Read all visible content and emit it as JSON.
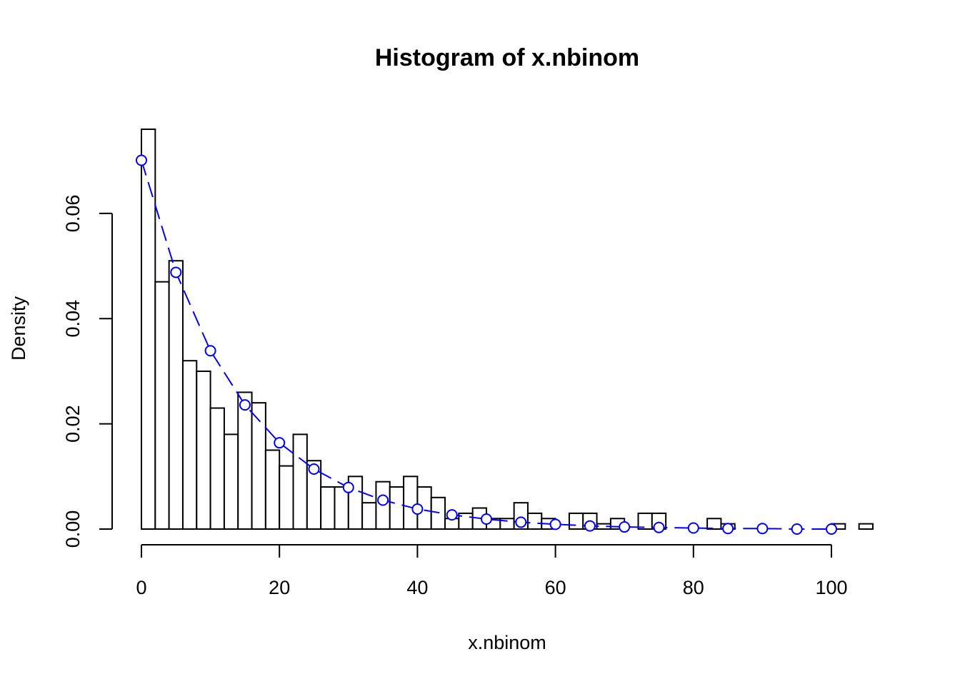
{
  "chart_data": {
    "type": "histogram",
    "title": "Histogram of x.nbinom",
    "x_label": "x.nbinom",
    "y_label": "Density",
    "bins": [
      0,
      2,
      4,
      6,
      8,
      10,
      12,
      14,
      16,
      18,
      20,
      22,
      24,
      26,
      28,
      30,
      32,
      34,
      36,
      38,
      40,
      42,
      44,
      46,
      48,
      50,
      52,
      54,
      56,
      58,
      60,
      62,
      64,
      66,
      68,
      70,
      72,
      74,
      76,
      78,
      80,
      82,
      84,
      86,
      88,
      90,
      92,
      94,
      96,
      98,
      100,
      102,
      104,
      106
    ],
    "values": [
      0.076,
      0.047,
      0.051,
      0.032,
      0.03,
      0.023,
      0.018,
      0.026,
      0.024,
      0.015,
      0.012,
      0.018,
      0.013,
      0.008,
      0.008,
      0.01,
      0.005,
      0.009,
      0.008,
      0.01,
      0.008,
      0.006,
      0.002,
      0.003,
      0.004,
      0.002,
      0.002,
      0.005,
      0.003,
      0.002,
      0,
      0.003,
      0.003,
      0.001,
      0.002,
      0,
      0.003,
      0.003,
      0,
      0,
      0,
      0.002,
      0.001,
      0,
      0,
      0,
      0,
      0,
      0,
      0,
      0.001,
      0,
      0.001
    ],
    "color": "#ffffff",
    "line": {
      "color": "#0000ff",
      "x": [
        0,
        5,
        10,
        15,
        20,
        25,
        30,
        35,
        40,
        45,
        50,
        55,
        60,
        65,
        70,
        75,
        80,
        85,
        90,
        95,
        100
      ],
      "values": [
        0.0701,
        0.0488,
        0.0339,
        0.0236,
        0.0164,
        0.0114,
        0.0079,
        0.0055,
        0.0038,
        0.0027,
        0.0019,
        0.0013,
        0.0009,
        0.0006,
        0.0004,
        0.0003,
        0.0002,
        0.0001,
        0.0001,
        0,
        0
      ]
    },
    "xlim": [
      0,
      106
    ],
    "ylim": [
      0,
      0.076
    ],
    "xticks": [
      0,
      20,
      40,
      60,
      80,
      100
    ],
    "yticks": [
      {
        "value": 0,
        "label": "0.00"
      },
      0.02,
      0.04,
      0.06
    ]
  }
}
